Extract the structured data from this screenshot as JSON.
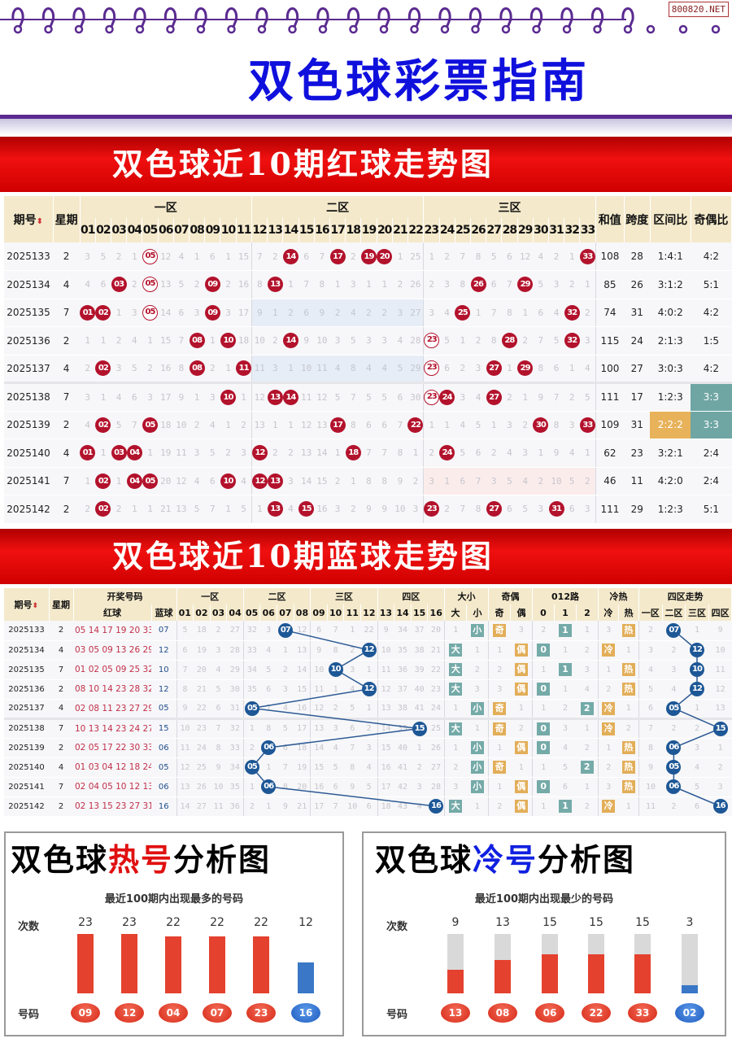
{
  "header": {
    "title": "双色球彩票指南",
    "site_badge": "800820.NET",
    "ring_color": "#5a2a90",
    "title_color": "#1010dd"
  },
  "red_section": {
    "banner": "双色球近10期红球走势图",
    "columns": {
      "period": "期号",
      "weekday": "星期",
      "zones": [
        "一区",
        "二区",
        "三区"
      ],
      "sum": "和值",
      "span": "跨度",
      "zone_ratio": "区间比",
      "odd_even_ratio": "奇偶比"
    },
    "sort_icon": "sort-up-down-icon",
    "rows": [
      {
        "period": "2025133",
        "weekday": "2",
        "omission": [
          3,
          5,
          2,
          1,
          0,
          12,
          4,
          1,
          6,
          1,
          15,
          7,
          2,
          0,
          6,
          7,
          0,
          2,
          0,
          0,
          1,
          25,
          1,
          2,
          7,
          8,
          5,
          6,
          12,
          4,
          2,
          1,
          0
        ],
        "outlined": [
          "05"
        ],
        "sum": "108",
        "span": "28",
        "zone_ratio": "1:4:1",
        "odd_even_ratio": "4:2"
      },
      {
        "period": "2025134",
        "weekday": "4",
        "omission": [
          4,
          6,
          0,
          2,
          0,
          13,
          5,
          2,
          0,
          2,
          16,
          8,
          0,
          1,
          7,
          8,
          1,
          3,
          1,
          1,
          2,
          26,
          2,
          3,
          8,
          0,
          6,
          7,
          0,
          5,
          3,
          2,
          1
        ],
        "outlined": [
          "05"
        ],
        "sum": "85",
        "span": "26",
        "zone_ratio": "3:1:2",
        "odd_even_ratio": "5:1"
      },
      {
        "period": "2025135",
        "weekday": "7",
        "omission": [
          0,
          0,
          1,
          3,
          0,
          14,
          6,
          3,
          0,
          3,
          17,
          9,
          1,
          2,
          6,
          9,
          2,
          4,
          2,
          2,
          3,
          27,
          3,
          4,
          0,
          1,
          7,
          8,
          1,
          6,
          4,
          0,
          2
        ],
        "outlined": [
          "05"
        ],
        "sum": "74",
        "span": "31",
        "zone_ratio": "4:0:2",
        "odd_even_ratio": "4:2"
      },
      {
        "period": "2025136",
        "weekday": "2",
        "omission": [
          1,
          1,
          2,
          4,
          1,
          15,
          7,
          0,
          1,
          0,
          18,
          10,
          2,
          0,
          9,
          10,
          3,
          5,
          3,
          3,
          4,
          28,
          0,
          5,
          1,
          2,
          8,
          0,
          2,
          7,
          5,
          0,
          3
        ],
        "outlined": [
          "23"
        ],
        "sum": "115",
        "span": "24",
        "zone_ratio": "2:1:3",
        "odd_even_ratio": "1:5"
      },
      {
        "period": "2025137",
        "weekday": "4",
        "omission": [
          2,
          0,
          3,
          5,
          2,
          16,
          8,
          0,
          2,
          1,
          0,
          11,
          3,
          1,
          10,
          11,
          4,
          8,
          4,
          4,
          5,
          29,
          0,
          6,
          2,
          3,
          0,
          1,
          0,
          8,
          6,
          1,
          4
        ],
        "outlined": [
          "23"
        ],
        "sum": "100",
        "span": "27",
        "zone_ratio": "3:0:3",
        "odd_even_ratio": "4:2"
      },
      {
        "period": "2025138",
        "weekday": "7",
        "omission": [
          3,
          1,
          4,
          6,
          3,
          17,
          9,
          1,
          3,
          0,
          1,
          12,
          0,
          0,
          11,
          12,
          5,
          7,
          5,
          5,
          6,
          30,
          0,
          0,
          3,
          4,
          0,
          2,
          1,
          9,
          7,
          2,
          5
        ],
        "outlined": [
          "23"
        ],
        "sum": "111",
        "span": "17",
        "zone_ratio": "1:2:3",
        "odd_even_ratio": "3:3"
      },
      {
        "period": "2025139",
        "weekday": "2",
        "omission": [
          4,
          0,
          5,
          7,
          0,
          18,
          10,
          2,
          4,
          1,
          2,
          13,
          1,
          1,
          12,
          13,
          0,
          8,
          6,
          6,
          7,
          0,
          1,
          1,
          4,
          5,
          1,
          3,
          2,
          0,
          8,
          3,
          0
        ],
        "outlined": [],
        "sum": "109",
        "span": "31",
        "zone_ratio": "2:2:2",
        "odd_even_ratio": "3:3"
      },
      {
        "period": "2025140",
        "weekday": "4",
        "omission": [
          0,
          1,
          0,
          0,
          1,
          19,
          11,
          3,
          5,
          2,
          3,
          0,
          2,
          2,
          13,
          14,
          1,
          0,
          7,
          7,
          8,
          1,
          2,
          0,
          5,
          6,
          2,
          4,
          3,
          1,
          9,
          4,
          1
        ],
        "outlined": [],
        "sum": "62",
        "span": "23",
        "zone_ratio": "3:2:1",
        "odd_even_ratio": "2:4"
      },
      {
        "period": "2025141",
        "weekday": "7",
        "omission": [
          1,
          0,
          1,
          0,
          0,
          20,
          12,
          4,
          6,
          0,
          4,
          0,
          0,
          3,
          14,
          15,
          2,
          1,
          8,
          8,
          9,
          2,
          3,
          1,
          6,
          7,
          3,
          5,
          4,
          2,
          10,
          5,
          2
        ],
        "outlined": [],
        "sum": "46",
        "span": "11",
        "zone_ratio": "4:2:0",
        "odd_even_ratio": "2:4"
      },
      {
        "period": "2025142",
        "weekday": "2",
        "omission": [
          2,
          0,
          2,
          1,
          1,
          21,
          13,
          5,
          7,
          1,
          5,
          1,
          0,
          4,
          0,
          16,
          3,
          2,
          9,
          9,
          10,
          3,
          0,
          2,
          7,
          8,
          0,
          6,
          5,
          3,
          0,
          6,
          3
        ],
        "outlined": [],
        "sum": "111",
        "span": "29",
        "zone_ratio": "1:2:3",
        "odd_even_ratio": "5:1"
      }
    ]
  },
  "blue_section": {
    "banner": "双色球近10期蓝球走势图",
    "columns": {
      "period": "期号",
      "weekday": "星期",
      "draw": "开奖号码",
      "red": "红球",
      "blue": "蓝球",
      "zones": [
        "一区",
        "二区",
        "三区",
        "四区"
      ],
      "size": "大小",
      "size_sub": [
        "大",
        "小"
      ],
      "parity": "奇偶",
      "parity_sub": [
        "奇",
        "偶"
      ],
      "road": "012路",
      "road_sub": [
        "0",
        "1",
        "2"
      ],
      "temp": "冷热",
      "temp_sub": [
        "冷",
        "热"
      ],
      "zone_trend": "四区走势",
      "zone_trend_sub": [
        "一区",
        "二区",
        "三区",
        "四区"
      ]
    },
    "rows": [
      {
        "period": "2025133",
        "weekday": "2",
        "reds": "05 14 17 19 20 33",
        "blue": "07",
        "omission": [
          5,
          18,
          2,
          27,
          32,
          3,
          0,
          12,
          6,
          7,
          1,
          22,
          9,
          34,
          37,
          20
        ],
        "size": [
          "1",
          "小"
        ],
        "parity": [
          "奇",
          "3"
        ],
        "road": [
          2,
          null,
          1
        ],
        "temp": [
          "3",
          "热"
        ],
        "zone": [
          2,
          0,
          1,
          9
        ]
      },
      {
        "period": "2025134",
        "weekday": "4",
        "reds": "03 05 09 13 26 29",
        "blue": "12",
        "omission": [
          6,
          19,
          3,
          28,
          33,
          4,
          1,
          13,
          9,
          8,
          2,
          0,
          10,
          35,
          38,
          21
        ],
        "size": [
          "大",
          "1"
        ],
        "parity": [
          "1",
          "偶"
        ],
        "road": [
          null,
          1,
          2
        ],
        "temp": [
          "冷",
          "1"
        ],
        "zone": [
          3,
          2,
          0,
          10
        ]
      },
      {
        "period": "2025135",
        "weekday": "7",
        "reds": "01 02 05 09 25 32",
        "blue": "10",
        "omission": [
          7,
          20,
          4,
          29,
          34,
          5,
          2,
          14,
          10,
          0,
          3,
          1,
          11,
          36,
          39,
          22
        ],
        "size": [
          "大",
          "2"
        ],
        "parity": [
          "2",
          "偶"
        ],
        "road": [
          1,
          null,
          3
        ],
        "temp": [
          "1",
          "热"
        ],
        "zone": [
          4,
          3,
          0,
          11
        ]
      },
      {
        "period": "2025136",
        "weekday": "2",
        "reds": "08 10 14 23 28 32",
        "blue": "12",
        "omission": [
          8,
          21,
          5,
          30,
          35,
          6,
          3,
          15,
          11,
          1,
          4,
          0,
          12,
          37,
          40,
          23
        ],
        "size": [
          "大",
          "3"
        ],
        "parity": [
          "3",
          "偶"
        ],
        "road": [
          null,
          1,
          4
        ],
        "temp": [
          "2",
          "热"
        ],
        "zone": [
          5,
          4,
          0,
          12
        ]
      },
      {
        "period": "2025137",
        "weekday": "4",
        "reds": "02 08 11 23 27 29",
        "blue": "05",
        "omission": [
          9,
          22,
          6,
          31,
          0,
          7,
          4,
          16,
          12,
          2,
          5,
          1,
          13,
          38,
          41,
          24
        ],
        "size": [
          "1",
          "小"
        ],
        "parity": [
          "奇",
          "1"
        ],
        "road": [
          1,
          2,
          null
        ],
        "temp": [
          "冷",
          "1"
        ],
        "zone": [
          6,
          0,
          1,
          13
        ]
      },
      {
        "period": "2025138",
        "weekday": "7",
        "reds": "10 13 14 23 24 27",
        "blue": "15",
        "omission": [
          10,
          23,
          7,
          32,
          1,
          8,
          5,
          17,
          13,
          3,
          6,
          2,
          14,
          39,
          0,
          25
        ],
        "size": [
          "大",
          "1"
        ],
        "parity": [
          "奇",
          "2"
        ],
        "road": [
          null,
          3,
          1
        ],
        "temp": [
          "冷",
          "2"
        ],
        "zone": [
          7,
          2,
          2,
          0
        ]
      },
      {
        "period": "2025139",
        "weekday": "2",
        "reds": "02 05 17 22 30 33",
        "blue": "06",
        "omission": [
          11,
          24,
          8,
          33,
          2,
          0,
          6,
          18,
          14,
          4,
          7,
          3,
          15,
          40,
          1,
          26
        ],
        "size": [
          "1",
          "小"
        ],
        "parity": [
          "1",
          "偶"
        ],
        "road": [
          null,
          4,
          2
        ],
        "temp": [
          "1",
          "热"
        ],
        "zone": [
          8,
          0,
          3,
          1
        ]
      },
      {
        "period": "2025140",
        "weekday": "4",
        "reds": "01 03 04 12 18 24",
        "blue": "05",
        "omission": [
          12,
          25,
          9,
          34,
          0,
          1,
          7,
          19,
          15,
          5,
          8,
          4,
          16,
          41,
          2,
          27
        ],
        "size": [
          "2",
          "小"
        ],
        "parity": [
          "奇",
          "1"
        ],
        "road": [
          1,
          5,
          null
        ],
        "temp": [
          "2",
          "热"
        ],
        "zone": [
          9,
          0,
          4,
          2
        ]
      },
      {
        "period": "2025141",
        "weekday": "7",
        "reds": "02 04 05 10 12 13",
        "blue": "06",
        "omission": [
          13,
          26,
          10,
          35,
          1,
          0,
          8,
          20,
          16,
          6,
          9,
          5,
          17,
          42,
          3,
          28
        ],
        "size": [
          "3",
          "小"
        ],
        "parity": [
          "1",
          "偶"
        ],
        "road": [
          null,
          6,
          1
        ],
        "temp": [
          "3",
          "热"
        ],
        "zone": [
          10,
          0,
          5,
          3
        ]
      },
      {
        "period": "2025142",
        "weekday": "2",
        "reds": "02 13 15 23 27 31",
        "blue": "16",
        "omission": [
          14,
          27,
          11,
          36,
          2,
          1,
          9,
          21,
          17,
          7,
          10,
          6,
          18,
          43,
          4,
          0
        ],
        "size": [
          "大",
          "1"
        ],
        "parity": [
          "2",
          "偶"
        ],
        "road": [
          1,
          null,
          2
        ],
        "temp": [
          "冷",
          "1"
        ],
        "zone": [
          11,
          2,
          6,
          0
        ]
      }
    ]
  },
  "hot_chart": {
    "title_pre": "双色球",
    "title_hl": "热号",
    "title_post": "分析图",
    "subtitle": "最近100期内出现最多的号码",
    "count_label": "次数",
    "number_label": "号码",
    "chart_data": {
      "type": "bar",
      "categories": [
        "09",
        "12",
        "04",
        "07",
        "23",
        "16"
      ],
      "values": [
        23,
        23,
        22,
        22,
        22,
        12
      ],
      "colors": [
        "red",
        "red",
        "red",
        "red",
        "red",
        "blue"
      ],
      "ylim": [
        0,
        23
      ]
    }
  },
  "cold_chart": {
    "title_pre": "双色球",
    "title_hl": "冷号",
    "title_post": "分析图",
    "subtitle": "最近100期内出现最少的号码",
    "count_label": "次数",
    "number_label": "号码",
    "chart_data": {
      "type": "bar",
      "categories": [
        "13",
        "08",
        "06",
        "22",
        "33",
        "02"
      ],
      "values": [
        9,
        13,
        15,
        15,
        15,
        3
      ],
      "colors": [
        "red",
        "red",
        "red",
        "red",
        "red",
        "blue"
      ],
      "ylim": [
        0,
        23
      ]
    }
  },
  "colors": {
    "banner_red": "#e00000",
    "red_ball": "#b3122c",
    "blue_ball": "#1d5796",
    "header_bg": "#f4e9cb",
    "bar_red": "#e4412f",
    "bar_blue": "#3a77c6",
    "teal": "#6fa6a4",
    "orange": "#e8b25a"
  }
}
